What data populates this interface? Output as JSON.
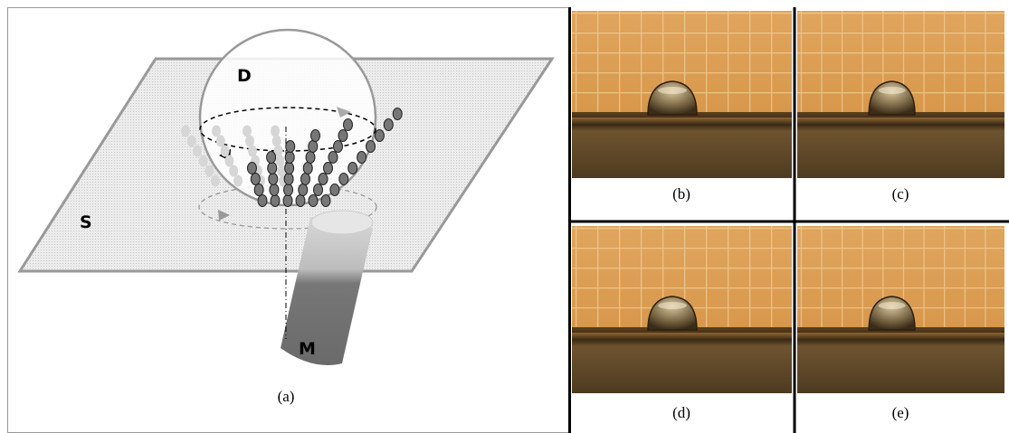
{
  "diagram": {
    "labels": [
      "D",
      "S",
      "M"
    ],
    "caption": "(a)"
  },
  "photos": [
    {
      "caption": "(b)"
    },
    {
      "caption": "(c)"
    },
    {
      "caption": "(d)"
    },
    {
      "caption": "(e)"
    }
  ]
}
